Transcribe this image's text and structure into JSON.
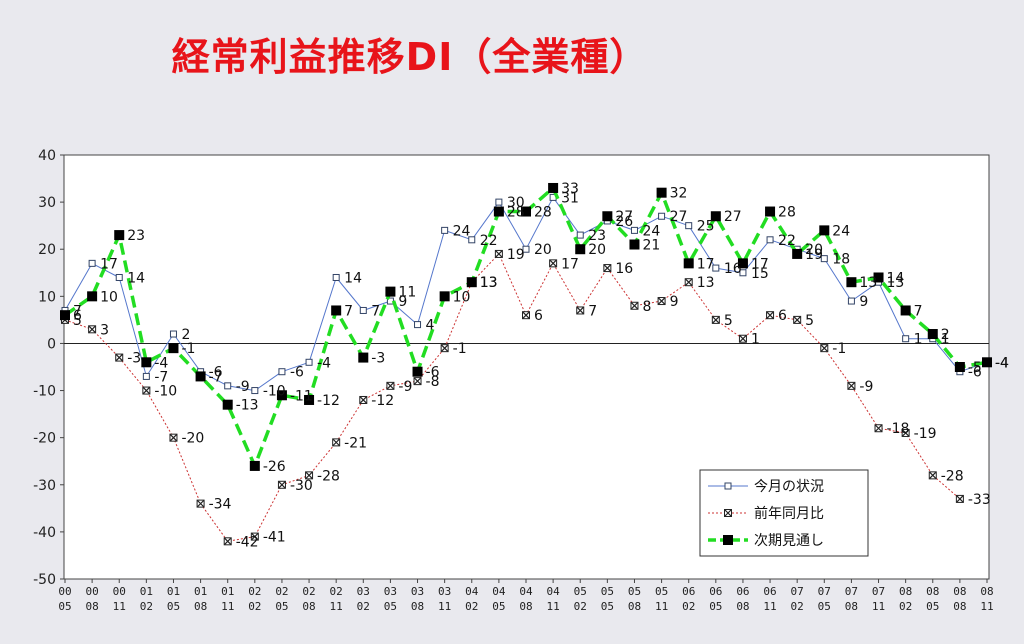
{
  "chart_data": {
    "type": "line",
    "title": "経常利益推移DI（全業種）",
    "xlabel": "",
    "ylabel": "",
    "ylim": [
      -50,
      40
    ],
    "yticks": [
      40,
      30,
      20,
      10,
      0,
      -10,
      -20,
      -30,
      -40,
      -50
    ],
    "grid": false,
    "legend_position": "bottom-right",
    "categories": [
      [
        "00",
        "05"
      ],
      [
        "00",
        "08"
      ],
      [
        "00",
        "11"
      ],
      [
        "01",
        "02"
      ],
      [
        "01",
        "05"
      ],
      [
        "01",
        "08"
      ],
      [
        "01",
        "11"
      ],
      [
        "02",
        "02"
      ],
      [
        "02",
        "05"
      ],
      [
        "02",
        "08"
      ],
      [
        "02",
        "11"
      ],
      [
        "03",
        "02"
      ],
      [
        "03",
        "05"
      ],
      [
        "03",
        "08"
      ],
      [
        "03",
        "11"
      ],
      [
        "04",
        "02"
      ],
      [
        "04",
        "05"
      ],
      [
        "04",
        "08"
      ],
      [
        "04",
        "11"
      ],
      [
        "05",
        "02"
      ],
      [
        "05",
        "05"
      ],
      [
        "05",
        "08"
      ],
      [
        "05",
        "11"
      ],
      [
        "06",
        "02"
      ],
      [
        "06",
        "05"
      ],
      [
        "06",
        "08"
      ],
      [
        "06",
        "11"
      ],
      [
        "07",
        "02"
      ],
      [
        "07",
        "05"
      ],
      [
        "07",
        "08"
      ],
      [
        "07",
        "11"
      ],
      [
        "08",
        "02"
      ],
      [
        "08",
        "05"
      ],
      [
        "08",
        "08"
      ],
      [
        "08",
        "11"
      ]
    ],
    "series": [
      {
        "name": "今月の状況",
        "color": "#5577cc",
        "marker": "open-square",
        "values": [
          7,
          17,
          14,
          -7,
          2,
          -6,
          -9,
          -10,
          -6,
          -4,
          14,
          7,
          9,
          4,
          24,
          22,
          30,
          20,
          31,
          23,
          26,
          24,
          27,
          25,
          16,
          15,
          22,
          20,
          18,
          9,
          13,
          1,
          1,
          -6,
          -4
        ]
      },
      {
        "name": "前年同月比",
        "color": "#cc3333",
        "marker": "cross-square",
        "values": [
          5,
          3,
          -3,
          -10,
          -20,
          -34,
          -42,
          -41,
          -30,
          -28,
          -21,
          -12,
          -9,
          -8,
          -1,
          13,
          19,
          6,
          17,
          7,
          16,
          8,
          9,
          13,
          5,
          1,
          6,
          5,
          -1,
          -9,
          -18,
          -19,
          -28,
          -33,
          null
        ]
      },
      {
        "name": "次期見通し",
        "color": "#22dd22",
        "marker": "filled-square",
        "values": [
          6,
          10,
          23,
          -4,
          -1,
          -7,
          -13,
          -26,
          -11,
          -12,
          7,
          -3,
          11,
          -6,
          10,
          13,
          28,
          28,
          33,
          20,
          27,
          21,
          32,
          17,
          27,
          17,
          28,
          19,
          24,
          13,
          14,
          7,
          2,
          -5,
          -4
        ]
      }
    ]
  }
}
